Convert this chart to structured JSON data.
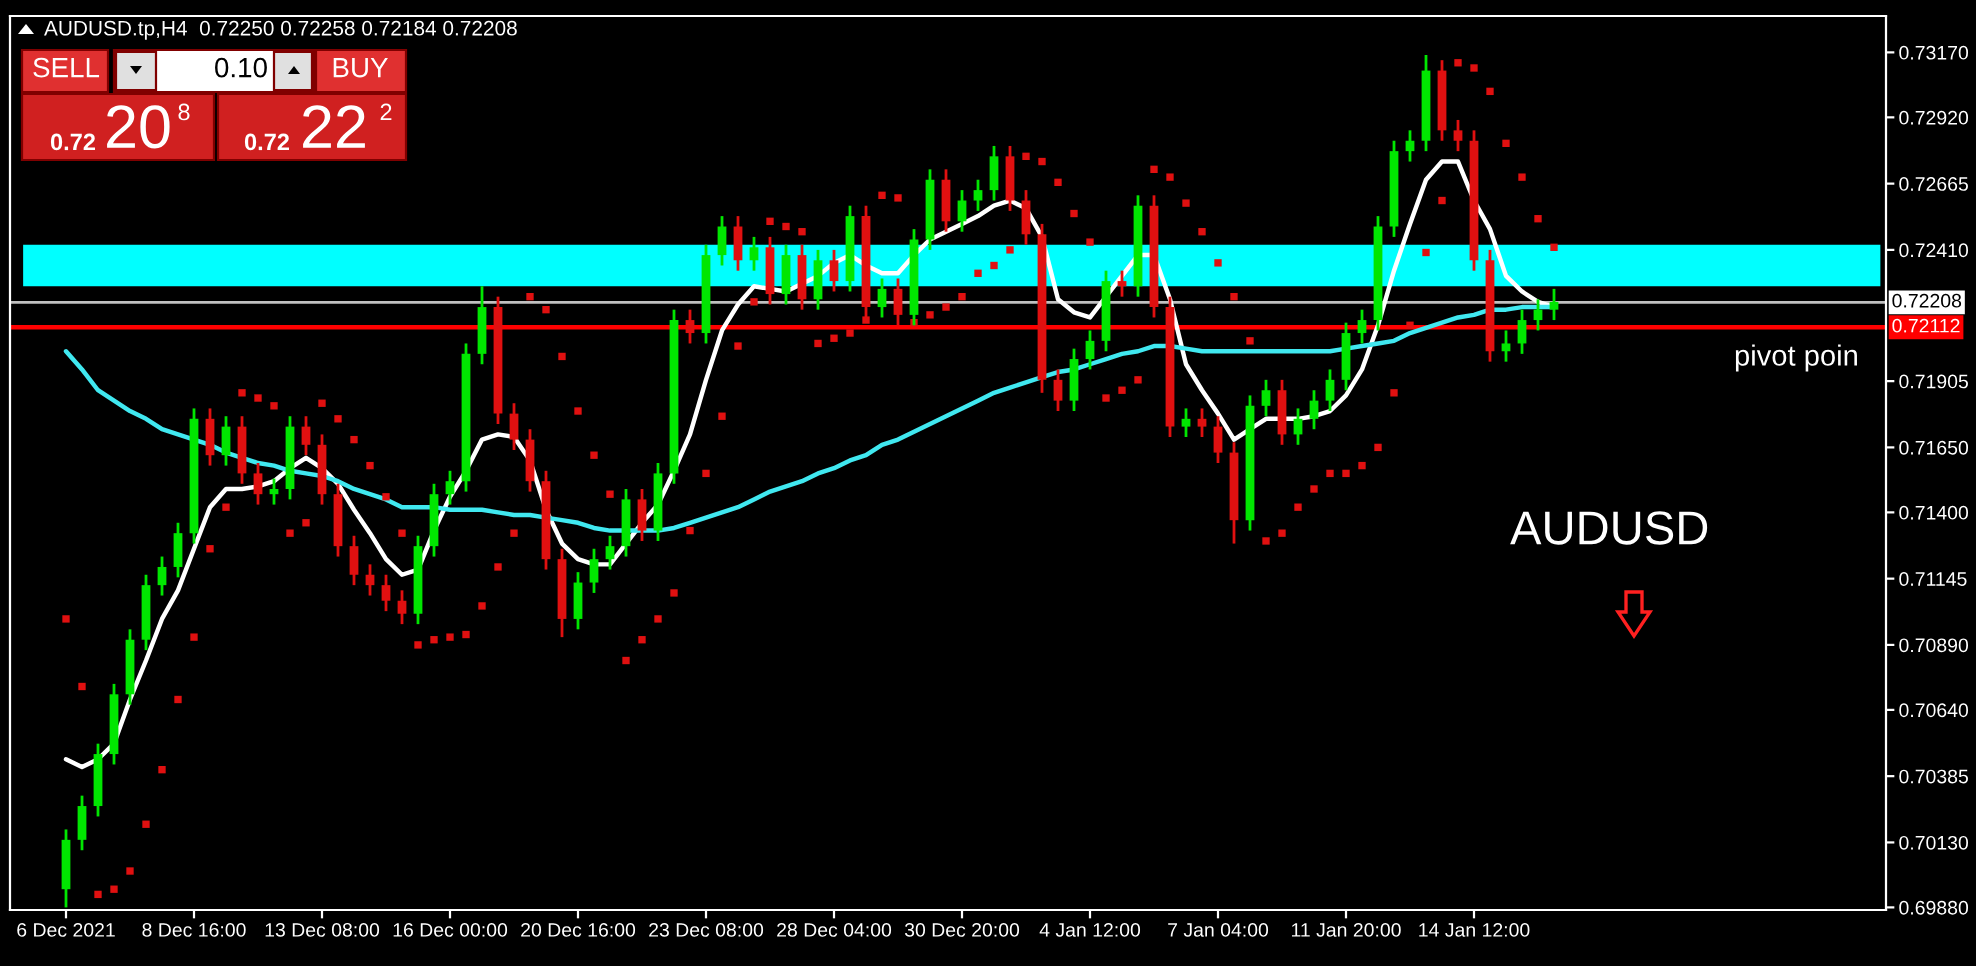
{
  "chart_data": {
    "type": "candlestick",
    "title": "AUDUSD.tp,H4  0.72250 0.72258 0.72184 0.72208",
    "categories": [
      "6 Dec 2021",
      null,
      null,
      null,
      null,
      null,
      null,
      null,
      "8 Dec 16:00",
      null,
      null,
      null,
      null,
      null,
      null,
      null,
      "13 Dec 08:00",
      null,
      null,
      null,
      null,
      null,
      null,
      null,
      "16 Dec 00:00",
      null,
      null,
      null,
      null,
      null,
      null,
      null,
      "20 Dec 16:00",
      null,
      null,
      null,
      null,
      null,
      null,
      null,
      "23 Dec 08:00",
      null,
      null,
      null,
      null,
      null,
      null,
      null,
      "28 Dec 04:00",
      null,
      null,
      null,
      null,
      null,
      null,
      null,
      "30 Dec 20:00",
      null,
      null,
      null,
      null,
      null,
      null,
      null,
      "4 Jan 12:00",
      null,
      null,
      null,
      null,
      null,
      null,
      null,
      "7 Jan 04:00",
      null,
      null,
      null,
      null,
      null,
      null,
      null,
      "11 Jan 20:00",
      null,
      null,
      null,
      null,
      null,
      null,
      null,
      "14 Jan 12:00",
      null,
      null,
      null,
      null,
      null
    ],
    "ohlc": [
      [
        0.6995,
        0.7018,
        0.6988,
        0.7014
      ],
      [
        0.7014,
        0.7031,
        0.701,
        0.7027
      ],
      [
        0.7027,
        0.7051,
        0.7023,
        0.7047
      ],
      [
        0.7047,
        0.7074,
        0.7043,
        0.707
      ],
      [
        0.707,
        0.7095,
        0.7066,
        0.7091
      ],
      [
        0.7091,
        0.7116,
        0.7087,
        0.7112
      ],
      [
        0.7112,
        0.7123,
        0.7108,
        0.7119
      ],
      [
        0.7119,
        0.7136,
        0.7115,
        0.7132
      ],
      [
        0.7132,
        0.718,
        0.7128,
        0.7176
      ],
      [
        0.7176,
        0.718,
        0.7158,
        0.7162
      ],
      [
        0.7162,
        0.7177,
        0.7158,
        0.7173
      ],
      [
        0.7173,
        0.7177,
        0.7151,
        0.7155
      ],
      [
        0.7155,
        0.7159,
        0.7143,
        0.7147
      ],
      [
        0.7147,
        0.7153,
        0.7143,
        0.7149
      ],
      [
        0.7149,
        0.7177,
        0.7145,
        0.7173
      ],
      [
        0.7173,
        0.7177,
        0.7162,
        0.7166
      ],
      [
        0.7166,
        0.717,
        0.7143,
        0.7147
      ],
      [
        0.7147,
        0.7151,
        0.7123,
        0.7127
      ],
      [
        0.7127,
        0.7131,
        0.7112,
        0.7116
      ],
      [
        0.7116,
        0.712,
        0.7108,
        0.7112
      ],
      [
        0.7112,
        0.7116,
        0.7102,
        0.7106
      ],
      [
        0.7106,
        0.711,
        0.7097,
        0.7101
      ],
      [
        0.7101,
        0.7131,
        0.7097,
        0.7127
      ],
      [
        0.7127,
        0.7151,
        0.7123,
        0.7147
      ],
      [
        0.7147,
        0.7156,
        0.7143,
        0.7152
      ],
      [
        0.7152,
        0.7205,
        0.7148,
        0.7201
      ],
      [
        0.7201,
        0.7227,
        0.7197,
        0.7219
      ],
      [
        0.7219,
        0.7223,
        0.7174,
        0.7178
      ],
      [
        0.7178,
        0.7182,
        0.7164,
        0.7168
      ],
      [
        0.7168,
        0.7172,
        0.7148,
        0.7152
      ],
      [
        0.7152,
        0.7156,
        0.7118,
        0.7122
      ],
      [
        0.7122,
        0.7126,
        0.7092,
        0.7099
      ],
      [
        0.7099,
        0.7117,
        0.7095,
        0.7113
      ],
      [
        0.7113,
        0.7126,
        0.7109,
        0.7122
      ],
      [
        0.7122,
        0.7131,
        0.7118,
        0.7127
      ],
      [
        0.7127,
        0.7149,
        0.7123,
        0.7145
      ],
      [
        0.7145,
        0.7149,
        0.7129,
        0.7133
      ],
      [
        0.7133,
        0.7159,
        0.7129,
        0.7155
      ],
      [
        0.7155,
        0.7218,
        0.7151,
        0.7214
      ],
      [
        0.7214,
        0.7218,
        0.7205,
        0.7209
      ],
      [
        0.7209,
        0.7243,
        0.7205,
        0.7239
      ],
      [
        0.7239,
        0.7254,
        0.7235,
        0.725
      ],
      [
        0.725,
        0.7254,
        0.7233,
        0.7237
      ],
      [
        0.7237,
        0.7246,
        0.7233,
        0.7242
      ],
      [
        0.7242,
        0.7246,
        0.722,
        0.7224
      ],
      [
        0.7224,
        0.7243,
        0.722,
        0.7239
      ],
      [
        0.7239,
        0.7243,
        0.7218,
        0.7222
      ],
      [
        0.7222,
        0.7241,
        0.7218,
        0.7237
      ],
      [
        0.7237,
        0.7241,
        0.7225,
        0.7229
      ],
      [
        0.7229,
        0.7258,
        0.7225,
        0.7254
      ],
      [
        0.7254,
        0.7258,
        0.7215,
        0.7219
      ],
      [
        0.7219,
        0.723,
        0.7215,
        0.7226
      ],
      [
        0.7226,
        0.723,
        0.7212,
        0.7216
      ],
      [
        0.7216,
        0.7249,
        0.7212,
        0.7245
      ],
      [
        0.7245,
        0.7272,
        0.7241,
        0.7268
      ],
      [
        0.7268,
        0.7272,
        0.7248,
        0.7252
      ],
      [
        0.7252,
        0.7264,
        0.7248,
        0.726
      ],
      [
        0.726,
        0.7268,
        0.7256,
        0.7264
      ],
      [
        0.7264,
        0.7281,
        0.726,
        0.7277
      ],
      [
        0.7277,
        0.7281,
        0.7256,
        0.726
      ],
      [
        0.726,
        0.7264,
        0.7243,
        0.7247
      ],
      [
        0.7247,
        0.7251,
        0.7186,
        0.7191
      ],
      [
        0.7191,
        0.7195,
        0.7179,
        0.7183
      ],
      [
        0.7183,
        0.7203,
        0.7179,
        0.7199
      ],
      [
        0.7199,
        0.721,
        0.7195,
        0.7206
      ],
      [
        0.7206,
        0.7233,
        0.7202,
        0.7229
      ],
      [
        0.7229,
        0.7233,
        0.7223,
        0.7227
      ],
      [
        0.7227,
        0.7262,
        0.7223,
        0.7258
      ],
      [
        0.7258,
        0.7262,
        0.7215,
        0.7219
      ],
      [
        0.7219,
        0.7223,
        0.7169,
        0.7173
      ],
      [
        0.7173,
        0.718,
        0.7169,
        0.7176
      ],
      [
        0.7176,
        0.718,
        0.7169,
        0.7173
      ],
      [
        0.7173,
        0.7177,
        0.7159,
        0.7163
      ],
      [
        0.7163,
        0.7167,
        0.7128,
        0.7137
      ],
      [
        0.7137,
        0.7185,
        0.7133,
        0.7181
      ],
      [
        0.7181,
        0.7191,
        0.7177,
        0.7187
      ],
      [
        0.7187,
        0.7191,
        0.7166,
        0.717
      ],
      [
        0.717,
        0.718,
        0.7166,
        0.7176
      ],
      [
        0.7176,
        0.7187,
        0.7172,
        0.7183
      ],
      [
        0.7183,
        0.7195,
        0.7179,
        0.7191
      ],
      [
        0.7191,
        0.7213,
        0.7187,
        0.7209
      ],
      [
        0.7209,
        0.7218,
        0.7205,
        0.7214
      ],
      [
        0.7214,
        0.7254,
        0.721,
        0.725
      ],
      [
        0.725,
        0.7283,
        0.7246,
        0.7279
      ],
      [
        0.7279,
        0.7287,
        0.7275,
        0.7283
      ],
      [
        0.7283,
        0.7316,
        0.7279,
        0.731
      ],
      [
        0.731,
        0.7314,
        0.7283,
        0.7287
      ],
      [
        0.7287,
        0.7291,
        0.7279,
        0.7283
      ],
      [
        0.7283,
        0.7287,
        0.7233,
        0.7237
      ],
      [
        0.7237,
        0.7241,
        0.7198,
        0.7202
      ],
      [
        0.7202,
        0.721,
        0.7198,
        0.7205
      ],
      [
        0.7205,
        0.7218,
        0.7201,
        0.7214
      ],
      [
        0.7214,
        0.7222,
        0.721,
        0.7218
      ],
      [
        0.7218,
        0.7226,
        0.7214,
        0.7221
      ]
    ],
    "series": [
      {
        "type": "line",
        "color": "#ffffff",
        "values": [
          0.7045,
          0.7042,
          0.7045,
          0.7051,
          0.7068,
          0.7083,
          0.7099,
          0.711,
          0.7126,
          0.7142,
          0.7149,
          0.7149,
          0.715,
          0.7152,
          0.7157,
          0.7161,
          0.7157,
          0.7151,
          0.7141,
          0.7132,
          0.7122,
          0.7116,
          0.7118,
          0.7133,
          0.7146,
          0.7156,
          0.7168,
          0.717,
          0.7169,
          0.716,
          0.7141,
          0.7128,
          0.7122,
          0.712,
          0.712,
          0.7128,
          0.7136,
          0.7143,
          0.7156,
          0.717,
          0.7191,
          0.721,
          0.722,
          0.7227,
          0.7226,
          0.7225,
          0.7228,
          0.7231,
          0.7236,
          0.7239,
          0.7235,
          0.7232,
          0.7232,
          0.7239,
          0.7245,
          0.7248,
          0.7251,
          0.7254,
          0.7258,
          0.726,
          0.7257,
          0.7246,
          0.7222,
          0.7217,
          0.7215,
          0.7223,
          0.7231,
          0.7239,
          0.7239,
          0.7222,
          0.7197,
          0.7187,
          0.7178,
          0.7168,
          0.7172,
          0.7176,
          0.7176,
          0.7176,
          0.7177,
          0.7179,
          0.7185,
          0.7195,
          0.7212,
          0.7233,
          0.7251,
          0.7268,
          0.7275,
          0.7275,
          0.726,
          0.7249,
          0.7231,
          0.7225,
          0.7221,
          0.7219
        ]
      },
      {
        "type": "line",
        "color": "#40e8f0",
        "values": [
          0.7202,
          0.7195,
          0.7187,
          0.7183,
          0.7179,
          0.7176,
          0.7172,
          0.717,
          0.7168,
          0.7166,
          0.7163,
          0.7161,
          0.7159,
          0.7158,
          0.7156,
          0.7155,
          0.7154,
          0.7152,
          0.7149,
          0.7147,
          0.7145,
          0.7142,
          0.7142,
          0.7142,
          0.7141,
          0.7141,
          0.7141,
          0.714,
          0.7139,
          0.7139,
          0.7138,
          0.7137,
          0.7136,
          0.7134,
          0.7133,
          0.7133,
          0.7133,
          0.7133,
          0.7134,
          0.7136,
          0.7138,
          0.714,
          0.7142,
          0.7145,
          0.7148,
          0.715,
          0.7152,
          0.7155,
          0.7157,
          0.716,
          0.7162,
          0.7166,
          0.7168,
          0.7171,
          0.7174,
          0.7177,
          0.718,
          0.7183,
          0.7186,
          0.7188,
          0.719,
          0.7192,
          0.7194,
          0.7195,
          0.7197,
          0.7199,
          0.7201,
          0.7202,
          0.7204,
          0.7204,
          0.7203,
          0.7202,
          0.7202,
          0.7202,
          0.7202,
          0.7202,
          0.7202,
          0.7202,
          0.7202,
          0.7202,
          0.7203,
          0.7204,
          0.7205,
          0.7206,
          0.7209,
          0.7211,
          0.7213,
          0.7215,
          0.7216,
          0.7218,
          0.7218,
          0.7219,
          0.7219,
          0.7219
        ]
      },
      {
        "type": "scatter",
        "color": "#e01010",
        "marker": "square",
        "values": [
          0.7099,
          0.7073,
          0.6993,
          0.6995,
          0.7002,
          0.702,
          0.7041,
          0.7068,
          0.7092,
          0.7126,
          0.7142,
          0.7186,
          0.7184,
          0.7181,
          0.7132,
          0.7136,
          0.7182,
          0.7176,
          0.7168,
          0.7158,
          0.7146,
          0.7132,
          0.7089,
          0.7091,
          0.7092,
          0.7093,
          0.7104,
          0.7119,
          0.7132,
          0.7223,
          0.7218,
          0.72,
          0.7179,
          0.7162,
          0.7147,
          0.7083,
          0.7091,
          0.7099,
          0.7109,
          0.7133,
          0.7155,
          0.7177,
          0.7204,
          0.7221,
          0.7252,
          0.725,
          0.7248,
          0.7205,
          0.7207,
          0.7209,
          0.7214,
          0.7262,
          0.7261,
          0.7213,
          0.7216,
          0.7219,
          0.7223,
          0.7232,
          0.7235,
          0.7241,
          0.7277,
          0.7275,
          0.7267,
          0.7255,
          0.7244,
          0.7184,
          0.7187,
          0.7191,
          0.7272,
          0.7269,
          0.7259,
          0.7248,
          0.7236,
          0.7223,
          0.7206,
          0.7129,
          0.7132,
          0.7142,
          0.7149,
          0.7155,
          0.7155,
          0.7158,
          0.7165,
          0.7186,
          0.7212,
          0.724,
          0.726,
          0.7313,
          0.7311,
          0.7302,
          0.7282,
          0.7269,
          0.7253,
          0.7242
        ]
      }
    ],
    "ylim": [
      0.6987,
      0.7331
    ],
    "yticks": [
      {
        "value": 0.7317,
        "label": "0.73170"
      },
      {
        "value": 0.7292,
        "label": "0.72920"
      },
      {
        "value": 0.72665,
        "label": "0.72665"
      },
      {
        "value": 0.7241,
        "label": "0.72410"
      },
      {
        "value": 0.71905,
        "label": "0.71905"
      },
      {
        "value": 0.7165,
        "label": "0.71650"
      },
      {
        "value": 0.714,
        "label": "0.71400"
      },
      {
        "value": 0.71145,
        "label": "0.71145"
      },
      {
        "value": 0.7089,
        "label": "0.70890"
      },
      {
        "value": 0.7064,
        "label": "0.70640"
      },
      {
        "value": 0.70385,
        "label": "0.70385"
      },
      {
        "value": 0.7013,
        "label": "0.70130"
      },
      {
        "value": 0.6988,
        "label": "0.69880"
      }
    ],
    "bands": [
      {
        "axis": "y",
        "from": 0.7227,
        "to": 0.7243,
        "color": "#00ffff"
      }
    ],
    "ref_lines": [
      {
        "axis": "y",
        "value": 0.72208,
        "label": "0.72208",
        "color": "#c0c0c0"
      },
      {
        "axis": "y",
        "value": 0.72112,
        "label": "0.72112",
        "color": "#ff0000"
      }
    ],
    "annotations": [
      "SELL",
      "0.10",
      "BUY",
      "0.72",
      "20",
      "8",
      "0.72",
      "22",
      "2",
      "pivot poin",
      "AUDUSD"
    ]
  }
}
